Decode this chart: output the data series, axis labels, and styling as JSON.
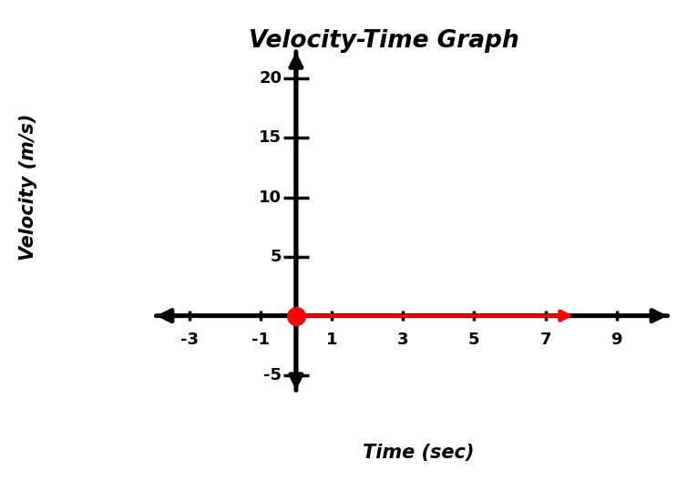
{
  "title": "Velocity-Time Graph",
  "xlabel": "Time (sec)",
  "ylabel": "Velocity (m/s)",
  "xlim": [
    -4.0,
    10.5
  ],
  "ylim": [
    -6.5,
    22.5
  ],
  "x_ticks": [
    -3,
    -1,
    1,
    3,
    5,
    7,
    9
  ],
  "y_ticks": [
    5,
    10,
    15,
    20
  ],
  "y_tick_neg": [
    -5
  ],
  "background_color": "#ffffff",
  "axis_color": "#000000",
  "line_color": "#ff0000",
  "dot_color": "#ff0000",
  "line_x_start": 0,
  "line_x_end": 7.85,
  "line_y": 0,
  "dot_x": 0,
  "dot_y": 0,
  "line_width": 3.0,
  "axis_linewidth": 3.5,
  "title_fontsize": 19,
  "label_fontsize": 15,
  "tick_fontsize": 13,
  "x_axis_left": -4.0,
  "x_axis_right": 10.5,
  "y_axis_bottom": -6.5,
  "y_axis_top": 22.5,
  "tick_half_y": 0.45,
  "tick_half_x": 0.18,
  "mutation_scale_axis": 22,
  "mutation_scale_red": 18
}
